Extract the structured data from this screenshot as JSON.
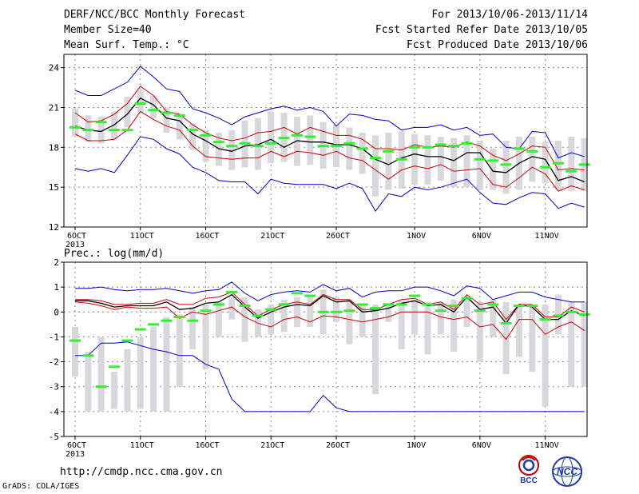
{
  "header": {
    "title": "DERF/NCC/BCC Monthly Forecast",
    "member_size": "Member Size=40",
    "variable": "Mean Surf. Temp.: °C",
    "period": "For 2013/10/06-2013/11/14",
    "refer_date": "Fcst Started Refer Date 2013/10/05",
    "produced_date": "Fcst Produced Date 2013/10/06"
  },
  "footer": {
    "url": "http://cmdp.ncc.cma.gov.cn",
    "grads": "GrADS: COLA/IGES",
    "logo_bcc": "BCC",
    "logo_ncc": "NCC"
  },
  "colors": {
    "envelope": "#0000cc",
    "spread": "#cc0000",
    "mean": "#000000",
    "box": "#d8d8dc",
    "marker": "#33ee33",
    "grid": "#888888"
  },
  "chart_data": [
    {
      "type": "line",
      "title": "Mean Surf. Temp.: °C",
      "x_tick_labels": [
        "6OCT",
        "11OCT",
        "16OCT",
        "21OCT",
        "26OCT",
        "1NOV",
        "6NOV",
        "11NOV"
      ],
      "x_tick_days": [
        1,
        6,
        11,
        16,
        21,
        27,
        32,
        37
      ],
      "x_sub_label": "2013",
      "x_days": [
        1,
        2,
        3,
        4,
        5,
        6,
        7,
        8,
        9,
        10,
        11,
        12,
        13,
        14,
        15,
        16,
        17,
        18,
        19,
        20,
        21,
        22,
        23,
        24,
        25,
        26,
        27,
        28,
        29,
        30,
        31,
        32,
        33,
        34,
        35,
        36,
        37,
        38,
        39,
        40
      ],
      "ylim": [
        12,
        25
      ],
      "yticks": [
        12,
        15,
        18,
        21,
        24
      ],
      "grid": true,
      "series": [
        {
          "role": "max",
          "values": [
            22.3,
            21.9,
            21.9,
            22.4,
            22.9,
            24.1,
            23.3,
            22.4,
            22.2,
            20.9,
            20.6,
            20.2,
            19.7,
            20.3,
            20.6,
            20.9,
            21.1,
            20.8,
            21.0,
            20.7,
            19.6,
            20.5,
            20.4,
            20.1,
            20.0,
            19.3,
            19.5,
            19.5,
            19.7,
            19.3,
            19.5,
            18.9,
            19.0,
            18.0,
            17.9,
            19.2,
            19.1,
            17.2,
            17.6,
            17.3
          ]
        },
        {
          "role": "p75",
          "values": [
            20.6,
            19.9,
            20.0,
            20.5,
            21.3,
            22.6,
            21.9,
            20.7,
            20.5,
            19.7,
            19.1,
            18.7,
            18.5,
            18.7,
            19.1,
            19.2,
            19.5,
            19.0,
            19.5,
            19.2,
            18.9,
            18.9,
            18.6,
            17.9,
            17.9,
            17.8,
            18.2,
            18.0,
            18.1,
            18.0,
            18.4,
            18.1,
            17.4,
            17.0,
            17.5,
            18.1,
            18.0,
            16.3,
            16.4,
            16.3
          ]
        },
        {
          "role": "mean",
          "values": [
            19.6,
            19.3,
            19.2,
            19.7,
            20.5,
            21.7,
            21.2,
            20.2,
            20.0,
            19.0,
            18.5,
            17.9,
            17.7,
            18.1,
            18.2,
            18.6,
            18.0,
            18.5,
            18.4,
            18.4,
            18.2,
            18.2,
            17.9,
            17.1,
            16.7,
            17.2,
            17.5,
            17.3,
            17.3,
            17.0,
            17.6,
            17.6,
            16.2,
            16.1,
            16.8,
            17.3,
            17.1,
            15.5,
            15.8,
            15.4
          ]
        },
        {
          "role": "p25",
          "values": [
            19.0,
            18.5,
            18.5,
            18.6,
            19.3,
            20.7,
            20.1,
            19.6,
            19.3,
            18.1,
            17.3,
            17.2,
            17.1,
            17.2,
            17.2,
            17.7,
            17.3,
            17.7,
            17.6,
            17.4,
            17.7,
            17.2,
            17.0,
            16.3,
            15.6,
            16.3,
            16.6,
            16.4,
            16.7,
            16.2,
            16.3,
            16.4,
            15.2,
            15.0,
            15.7,
            16.5,
            16.0,
            14.7,
            15.1,
            14.8
          ]
        },
        {
          "role": "min",
          "values": [
            16.4,
            16.2,
            16.4,
            16.1,
            17.4,
            18.8,
            18.6,
            17.9,
            17.5,
            16.5,
            16.1,
            15.5,
            15.4,
            15.4,
            14.5,
            15.6,
            15.3,
            15.2,
            15.2,
            15.2,
            14.9,
            15.3,
            14.9,
            13.2,
            14.5,
            14.3,
            15.0,
            14.8,
            15.0,
            15.3,
            15.6,
            14.6,
            13.8,
            13.7,
            14.2,
            14.6,
            14.5,
            13.4,
            13.8,
            13.5
          ]
        }
      ],
      "box_ranges": [
        [
          18.8,
          20.9
        ],
        [
          18.4,
          20.4
        ],
        [
          18.3,
          20.3
        ],
        [
          18.6,
          20.7
        ],
        [
          19.5,
          21.8
        ],
        [
          20.6,
          22.3
        ],
        [
          20.2,
          21.9
        ],
        [
          19.1,
          21.0
        ],
        [
          18.6,
          20.5
        ],
        [
          17.8,
          19.8
        ],
        [
          16.9,
          19.3
        ],
        [
          16.6,
          19.1
        ],
        [
          16.3,
          19.3
        ],
        [
          16.5,
          20.0
        ],
        [
          16.3,
          20.2
        ],
        [
          16.8,
          20.7
        ],
        [
          16.9,
          20.6
        ],
        [
          16.6,
          20.3
        ],
        [
          16.7,
          20.4
        ],
        [
          16.4,
          19.9
        ],
        [
          16.5,
          19.7
        ],
        [
          16.3,
          19.5
        ],
        [
          16.0,
          19.1
        ],
        [
          14.3,
          18.9
        ],
        [
          14.8,
          19.1
        ],
        [
          14.9,
          19.2
        ],
        [
          15.2,
          19.0
        ],
        [
          15.2,
          18.9
        ],
        [
          15.5,
          18.8
        ],
        [
          15.0,
          18.7
        ],
        [
          15.0,
          18.9
        ],
        [
          14.8,
          18.5
        ],
        [
          14.8,
          17.9
        ],
        [
          14.5,
          18.5
        ],
        [
          14.8,
          18.8
        ],
        [
          15.4,
          18.8
        ],
        [
          15.3,
          18.4
        ],
        [
          14.8,
          18.5
        ],
        [
          14.7,
          18.8
        ],
        [
          14.7,
          18.7
        ]
      ],
      "markers": [
        19.5,
        19.3,
        19.9,
        19.3,
        19.3,
        21.3,
        20.8,
        20.6,
        20.4,
        19.3,
        18.9,
        18.4,
        18.1,
        18.3,
        18.1,
        18.3,
        18.7,
        18.9,
        18.8,
        18.1,
        18.1,
        18.3,
        17.9,
        17.2,
        17.7,
        17.1,
        18.0,
        18.0,
        18.2,
        18.1,
        18.3,
        17.1,
        17.0,
        16.7,
        17.9,
        17.7,
        16.5,
        16.8,
        16.2,
        16.7
      ]
    },
    {
      "type": "line",
      "title": "Prec.: log(mm/d)",
      "x_tick_labels": [
        "6OCT",
        "11OCT",
        "16OCT",
        "21OCT",
        "26OCT",
        "1NOV",
        "6NOV",
        "11NOV"
      ],
      "x_tick_days": [
        1,
        6,
        11,
        16,
        21,
        27,
        32,
        37
      ],
      "x_sub_label": "2013",
      "x_days": [
        1,
        2,
        3,
        4,
        5,
        6,
        7,
        8,
        9,
        10,
        11,
        12,
        13,
        14,
        15,
        16,
        17,
        18,
        19,
        20,
        21,
        22,
        23,
        24,
        25,
        26,
        27,
        28,
        29,
        30,
        31,
        32,
        33,
        34,
        35,
        36,
        37,
        38,
        39,
        40
      ],
      "ylim": [
        -5,
        2
      ],
      "yticks": [
        -5,
        -4,
        -3,
        -2,
        -1,
        0,
        1,
        2
      ],
      "grid": true,
      "series": [
        {
          "role": "max",
          "values": [
            0.95,
            0.95,
            1.0,
            0.9,
            0.85,
            0.9,
            0.9,
            0.95,
            0.85,
            0.75,
            0.85,
            0.9,
            1.2,
            0.75,
            0.45,
            0.7,
            0.8,
            0.85,
            0.8,
            1.1,
            0.85,
            0.95,
            0.6,
            0.8,
            0.85,
            0.85,
            1.0,
            1.0,
            0.85,
            0.65,
            1.05,
            0.95,
            0.5,
            0.65,
            0.8,
            0.8,
            0.6,
            0.5,
            0.4,
            0.4
          ]
        },
        {
          "role": "p75",
          "values": [
            0.5,
            0.5,
            0.45,
            0.3,
            0.3,
            0.35,
            0.35,
            0.5,
            0.3,
            0.3,
            0.55,
            0.6,
            0.8,
            0.3,
            -0.15,
            0.1,
            0.3,
            0.4,
            0.3,
            0.7,
            0.5,
            0.5,
            0.1,
            0.1,
            0.3,
            0.5,
            0.55,
            0.3,
            0.4,
            0.1,
            0.7,
            0.3,
            0.4,
            -0.3,
            0.3,
            0.3,
            -0.2,
            -0.2,
            0.2,
            0.0
          ]
        },
        {
          "role": "mean",
          "values": [
            0.45,
            0.45,
            0.35,
            0.2,
            0.25,
            0.25,
            0.25,
            0.4,
            0.1,
            0.15,
            0.35,
            0.4,
            0.7,
            0.2,
            -0.25,
            0.0,
            0.2,
            0.3,
            0.25,
            0.65,
            0.4,
            0.45,
            0.0,
            0.05,
            0.15,
            0.35,
            0.45,
            0.25,
            0.3,
            0.0,
            0.6,
            0.1,
            0.2,
            -0.45,
            0.3,
            0.2,
            -0.3,
            -0.3,
            0.05,
            -0.15
          ]
        },
        {
          "role": "p25",
          "values": [
            0.4,
            0.35,
            0.25,
            0.1,
            0.2,
            0.15,
            0.15,
            0.2,
            -0.25,
            0.0,
            -0.1,
            0.05,
            0.2,
            -0.2,
            -0.45,
            -0.6,
            -0.3,
            -0.2,
            -0.4,
            -0.15,
            -0.2,
            -0.3,
            -0.4,
            -0.3,
            -0.2,
            0.0,
            0.0,
            0.0,
            -0.2,
            -0.3,
            -0.2,
            -0.6,
            -0.5,
            -1.1,
            -0.3,
            -0.3,
            -0.9,
            -0.6,
            -0.4,
            -0.75
          ]
        },
        {
          "role": "min",
          "values": [
            -1.75,
            -1.75,
            -1.25,
            -1.25,
            -1.2,
            -1.35,
            -1.5,
            -1.6,
            -1.75,
            -1.75,
            -2.1,
            -2.3,
            -3.5,
            -4.0,
            -4.0,
            -4.0,
            -4.0,
            -4.0,
            -4.0,
            -3.35,
            -3.85,
            -4.0,
            -4.0,
            -4.0,
            -4.0,
            -4.0,
            -4.0,
            -4.0,
            -4.0,
            -4.0,
            -4.0,
            -4.0,
            -4.0,
            -4.0,
            -4.0,
            -4.0,
            -4.0,
            -4.0,
            -4.0,
            -4.0
          ]
        }
      ],
      "box_ranges": [
        [
          -2.6,
          -0.6
        ],
        [
          -4.0,
          -1.6
        ],
        [
          -4.0,
          -1.0
        ],
        [
          -3.9,
          -2.4
        ],
        [
          -4.0,
          -1.5
        ],
        [
          -3.9,
          -1.0
        ],
        [
          -4.0,
          -0.6
        ],
        [
          -4.0,
          -0.2
        ],
        [
          -3.0,
          -0.1
        ],
        [
          -1.5,
          0.2
        ],
        [
          -2.3,
          0.3
        ],
        [
          -1.0,
          0.4
        ],
        [
          -0.3,
          0.6
        ],
        [
          -1.2,
          0.6
        ],
        [
          -1.0,
          0.1
        ],
        [
          -0.9,
          0.3
        ],
        [
          -0.8,
          0.5
        ],
        [
          -0.6,
          0.6
        ],
        [
          -0.6,
          0.7
        ],
        [
          -0.9,
          0.9
        ],
        [
          -0.4,
          0.6
        ],
        [
          -1.3,
          0.5
        ],
        [
          -1.0,
          0.3
        ],
        [
          -3.3,
          0.3
        ],
        [
          -0.4,
          0.3
        ],
        [
          -1.5,
          0.5
        ],
        [
          -0.9,
          0.5
        ],
        [
          -1.7,
          0.4
        ],
        [
          -0.9,
          0.4
        ],
        [
          -1.6,
          0.5
        ],
        [
          -0.6,
          0.6
        ],
        [
          -2.0,
          0.4
        ],
        [
          -1.0,
          0.5
        ],
        [
          -2.5,
          0.4
        ],
        [
          -1.8,
          0.3
        ],
        [
          -2.4,
          0.3
        ],
        [
          -3.8,
          0.3
        ],
        [
          -0.9,
          0.7
        ],
        [
          -3.0,
          0.4
        ],
        [
          -3.0,
          0.4
        ]
      ],
      "markers": [
        -1.15,
        -1.75,
        -3.0,
        -2.2,
        -1.15,
        -0.7,
        -0.5,
        -0.35,
        -0.2,
        -0.35,
        0.05,
        0.3,
        0.8,
        0.25,
        -0.15,
        0.1,
        0.3,
        0.75,
        0.65,
        0.0,
        0.0,
        0.05,
        0.3,
        0.15,
        0.3,
        0.3,
        0.65,
        0.3,
        0.05,
        0.25,
        0.55,
        0.05,
        0.3,
        -0.45,
        0.25,
        0.25,
        -0.3,
        -0.15,
        0.0,
        -0.1
      ]
    }
  ]
}
